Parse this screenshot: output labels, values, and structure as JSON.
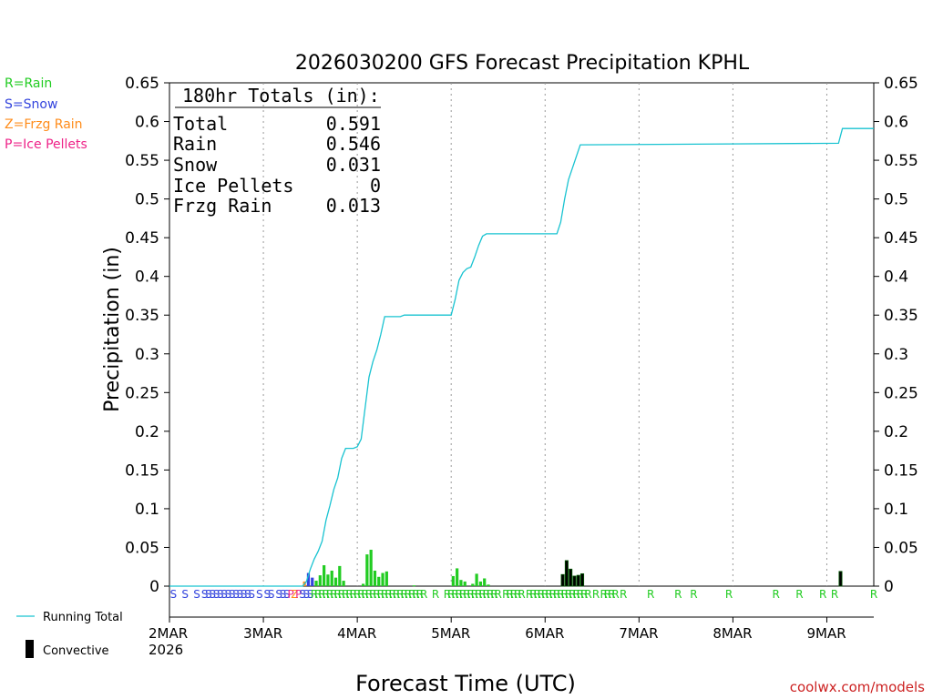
{
  "chart_data": {
    "type": "bar",
    "title": "2026030200 GFS Forecast Precipitation KPHL",
    "xlabel": "Forecast Time (UTC)",
    "ylabel": "Precipitation (in)",
    "ylim": [
      0,
      0.65
    ],
    "yticks": [
      0,
      0.05,
      0.1,
      0.15,
      0.2,
      0.25,
      0.3,
      0.35,
      0.4,
      0.45,
      0.5,
      0.55,
      0.6,
      0.65
    ],
    "ytick_labels": [
      "0",
      "0.05",
      "0.1",
      "0.15",
      "0.2",
      "0.25",
      "0.3",
      "0.35",
      "0.4",
      "0.45",
      "0.5",
      "0.55",
      "0.6",
      "0.65"
    ],
    "xlim_hours": [
      0,
      180
    ],
    "grid": "vertical dotted at day boundaries",
    "x_tick_labels": [
      {
        "hour": 0,
        "label": "2MAR"
      },
      {
        "hour": 24,
        "label": "3MAR"
      },
      {
        "hour": 48,
        "label": "4MAR"
      },
      {
        "hour": 72,
        "label": "5MAR"
      },
      {
        "hour": 96,
        "label": "6MAR"
      },
      {
        "hour": 120,
        "label": "7MAR"
      },
      {
        "hour": 144,
        "label": "8MAR"
      },
      {
        "hour": 168,
        "label": "9MAR"
      }
    ],
    "x_year_label": "2026",
    "legend_types": [
      {
        "label": "R=Rain",
        "color": "#22cc22"
      },
      {
        "label": "S=Snow",
        "color": "#3344dd"
      },
      {
        "label": "Z=Frzg Rain",
        "color": "#ff8c1a"
      },
      {
        "label": "P=Ice Pellets",
        "color": "#ee2288"
      }
    ],
    "legend_series": [
      {
        "label": "Running Total",
        "style": "line",
        "color": "#19c3d1"
      },
      {
        "label": "Convective",
        "style": "bar",
        "color": "#000000"
      }
    ],
    "totals_box": {
      "heading": "180hr Totals (in):",
      "rows": [
        {
          "label": "Total",
          "value": "0.591"
        },
        {
          "label": "Rain",
          "value": "0.546"
        },
        {
          "label": "Snow",
          "value": "0.031"
        },
        {
          "label": "Ice Pellets",
          "value": "0"
        },
        {
          "label": "Frzg Rain",
          "value": "0.013"
        }
      ]
    },
    "bars": [
      {
        "h": 34.5,
        "v": 0.006,
        "type": "Z"
      },
      {
        "h": 35.5,
        "v": 0.017,
        "type": "S"
      },
      {
        "h": 36.5,
        "v": 0.011,
        "type": "S"
      },
      {
        "h": 37.5,
        "v": 0.007,
        "type": "R"
      },
      {
        "h": 38.5,
        "v": 0.014,
        "type": "R"
      },
      {
        "h": 39.5,
        "v": 0.027,
        "type": "R"
      },
      {
        "h": 40.5,
        "v": 0.015,
        "type": "R"
      },
      {
        "h": 41.5,
        "v": 0.02,
        "type": "R"
      },
      {
        "h": 42.5,
        "v": 0.011,
        "type": "R"
      },
      {
        "h": 43.5,
        "v": 0.026,
        "type": "R"
      },
      {
        "h": 44.5,
        "v": 0.007,
        "type": "R"
      },
      {
        "h": 49.5,
        "v": 0.003,
        "type": "R"
      },
      {
        "h": 50.5,
        "v": 0.041,
        "type": "R"
      },
      {
        "h": 51.5,
        "v": 0.047,
        "type": "R"
      },
      {
        "h": 52.5,
        "v": 0.02,
        "type": "R"
      },
      {
        "h": 53.5,
        "v": 0.012,
        "type": "R"
      },
      {
        "h": 54.5,
        "v": 0.017,
        "type": "R"
      },
      {
        "h": 55.5,
        "v": 0.019,
        "type": "R"
      },
      {
        "h": 62.5,
        "v": 0.001,
        "type": "R"
      },
      {
        "h": 72.5,
        "v": 0.013,
        "type": "R"
      },
      {
        "h": 73.5,
        "v": 0.023,
        "type": "R"
      },
      {
        "h": 74.5,
        "v": 0.008,
        "type": "R"
      },
      {
        "h": 75.5,
        "v": 0.006,
        "type": "R"
      },
      {
        "h": 77.5,
        "v": 0.003,
        "type": "R"
      },
      {
        "h": 78.5,
        "v": 0.016,
        "type": "R"
      },
      {
        "h": 79.5,
        "v": 0.006,
        "type": "R"
      },
      {
        "h": 80.5,
        "v": 0.01,
        "type": "R"
      },
      {
        "h": 81.5,
        "v": 0.002,
        "type": "R"
      },
      {
        "h": 100.5,
        "v": 0.015,
        "type": "C"
      },
      {
        "h": 101.5,
        "v": 0.033,
        "type": "C"
      },
      {
        "h": 102.5,
        "v": 0.022,
        "type": "C"
      },
      {
        "h": 103.5,
        "v": 0.013,
        "type": "C"
      },
      {
        "h": 104.5,
        "v": 0.014,
        "type": "C"
      },
      {
        "h": 105.5,
        "v": 0.016,
        "type": "C"
      },
      {
        "h": 171.5,
        "v": 0.019,
        "type": "C"
      }
    ],
    "running_total": [
      [
        0,
        0
      ],
      [
        34,
        0
      ],
      [
        35,
        0.006
      ],
      [
        36,
        0.022
      ],
      [
        37,
        0.035
      ],
      [
        38,
        0.045
      ],
      [
        39,
        0.058
      ],
      [
        40,
        0.085
      ],
      [
        41,
        0.104
      ],
      [
        42,
        0.125
      ],
      [
        43,
        0.14
      ],
      [
        44,
        0.165
      ],
      [
        45,
        0.178
      ],
      [
        47,
        0.178
      ],
      [
        48,
        0.18
      ],
      [
        49,
        0.19
      ],
      [
        50,
        0.23
      ],
      [
        51,
        0.27
      ],
      [
        52,
        0.29
      ],
      [
        53,
        0.305
      ],
      [
        54,
        0.325
      ],
      [
        55,
        0.348
      ],
      [
        59,
        0.348
      ],
      [
        60,
        0.35
      ],
      [
        72,
        0.35
      ],
      [
        73,
        0.37
      ],
      [
        74,
        0.395
      ],
      [
        75,
        0.405
      ],
      [
        76,
        0.41
      ],
      [
        77,
        0.412
      ],
      [
        78,
        0.425
      ],
      [
        79,
        0.44
      ],
      [
        80,
        0.452
      ],
      [
        81,
        0.455
      ],
      [
        99,
        0.455
      ],
      [
        100,
        0.47
      ],
      [
        101,
        0.5
      ],
      [
        102,
        0.525
      ],
      [
        103,
        0.54
      ],
      [
        104,
        0.555
      ],
      [
        105,
        0.57
      ],
      [
        171,
        0.572
      ],
      [
        172,
        0.591
      ],
      [
        180,
        0.591
      ]
    ],
    "ptype_markers": [
      {
        "h": 1,
        "t": "S"
      },
      {
        "h": 4,
        "t": "S"
      },
      {
        "h": 7,
        "t": "S"
      },
      {
        "h": 9,
        "t": "S"
      },
      {
        "h": 10,
        "t": "S"
      },
      {
        "h": 11,
        "t": "S"
      },
      {
        "h": 12,
        "t": "S"
      },
      {
        "h": 13,
        "t": "S"
      },
      {
        "h": 14,
        "t": "S"
      },
      {
        "h": 15,
        "t": "S"
      },
      {
        "h": 16,
        "t": "S"
      },
      {
        "h": 17,
        "t": "S"
      },
      {
        "h": 18,
        "t": "S"
      },
      {
        "h": 19,
        "t": "S"
      },
      {
        "h": 20,
        "t": "S"
      },
      {
        "h": 21,
        "t": "S"
      },
      {
        "h": 23,
        "t": "S"
      },
      {
        "h": 25,
        "t": "S"
      },
      {
        "h": 26,
        "t": "S"
      },
      {
        "h": 28,
        "t": "S"
      },
      {
        "h": 29,
        "t": "S"
      },
      {
        "h": 30,
        "t": "S"
      },
      {
        "h": 31,
        "t": "P"
      },
      {
        "h": 32,
        "t": "Z"
      },
      {
        "h": 33,
        "t": "P"
      },
      {
        "h": 34,
        "t": "S"
      },
      {
        "h": 35,
        "t": "S"
      },
      {
        "h": 36,
        "t": "S"
      },
      {
        "h": 37,
        "t": "R"
      },
      {
        "h": 38,
        "t": "R"
      },
      {
        "h": 39,
        "t": "R"
      },
      {
        "h": 40,
        "t": "R"
      },
      {
        "h": 41,
        "t": "R"
      },
      {
        "h": 42,
        "t": "R"
      },
      {
        "h": 43,
        "t": "R"
      },
      {
        "h": 44,
        "t": "R"
      },
      {
        "h": 45,
        "t": "R"
      },
      {
        "h": 46,
        "t": "R"
      },
      {
        "h": 47,
        "t": "R"
      },
      {
        "h": 48,
        "t": "R"
      },
      {
        "h": 49,
        "t": "R"
      },
      {
        "h": 50,
        "t": "R"
      },
      {
        "h": 51,
        "t": "R"
      },
      {
        "h": 52,
        "t": "R"
      },
      {
        "h": 53,
        "t": "R"
      },
      {
        "h": 54,
        "t": "R"
      },
      {
        "h": 55,
        "t": "R"
      },
      {
        "h": 56,
        "t": "R"
      },
      {
        "h": 57,
        "t": "R"
      },
      {
        "h": 58,
        "t": "R"
      },
      {
        "h": 59,
        "t": "R"
      },
      {
        "h": 60,
        "t": "R"
      },
      {
        "h": 61,
        "t": "R"
      },
      {
        "h": 62,
        "t": "R"
      },
      {
        "h": 63,
        "t": "R"
      },
      {
        "h": 64,
        "t": "R"
      },
      {
        "h": 65,
        "t": "R"
      },
      {
        "h": 68,
        "t": "R"
      },
      {
        "h": 71,
        "t": "R"
      },
      {
        "h": 72,
        "t": "R"
      },
      {
        "h": 73,
        "t": "R"
      },
      {
        "h": 74,
        "t": "R"
      },
      {
        "h": 75,
        "t": "R"
      },
      {
        "h": 76,
        "t": "R"
      },
      {
        "h": 77,
        "t": "R"
      },
      {
        "h": 78,
        "t": "R"
      },
      {
        "h": 79,
        "t": "R"
      },
      {
        "h": 80,
        "t": "R"
      },
      {
        "h": 81,
        "t": "R"
      },
      {
        "h": 82,
        "t": "R"
      },
      {
        "h": 83,
        "t": "R"
      },
      {
        "h": 84,
        "t": "R"
      },
      {
        "h": 86,
        "t": "R"
      },
      {
        "h": 87,
        "t": "R"
      },
      {
        "h": 88,
        "t": "R"
      },
      {
        "h": 89,
        "t": "R"
      },
      {
        "h": 90,
        "t": "R"
      },
      {
        "h": 92,
        "t": "R"
      },
      {
        "h": 93,
        "t": "R"
      },
      {
        "h": 94,
        "t": "R"
      },
      {
        "h": 95,
        "t": "R"
      },
      {
        "h": 96,
        "t": "R"
      },
      {
        "h": 97,
        "t": "R"
      },
      {
        "h": 98,
        "t": "R"
      },
      {
        "h": 99,
        "t": "R"
      },
      {
        "h": 100,
        "t": "R"
      },
      {
        "h": 101,
        "t": "R"
      },
      {
        "h": 102,
        "t": "R"
      },
      {
        "h": 103,
        "t": "R"
      },
      {
        "h": 104,
        "t": "R"
      },
      {
        "h": 105,
        "t": "R"
      },
      {
        "h": 106,
        "t": "R"
      },
      {
        "h": 107,
        "t": "R"
      },
      {
        "h": 109,
        "t": "R"
      },
      {
        "h": 111,
        "t": "R"
      },
      {
        "h": 112,
        "t": "R"
      },
      {
        "h": 113,
        "t": "R"
      },
      {
        "h": 114,
        "t": "R"
      },
      {
        "h": 116,
        "t": "R"
      },
      {
        "h": 123,
        "t": "R"
      },
      {
        "h": 130,
        "t": "R"
      },
      {
        "h": 134,
        "t": "R"
      },
      {
        "h": 143,
        "t": "R"
      },
      {
        "h": 155,
        "t": "R"
      },
      {
        "h": 161,
        "t": "R"
      },
      {
        "h": 167,
        "t": "R"
      },
      {
        "h": 170,
        "t": "R"
      },
      {
        "h": 180,
        "t": "R"
      }
    ],
    "credit": "coolwx.com/models"
  },
  "colors": {
    "rain": "#22cc22",
    "snow": "#3344dd",
    "frzg_rain": "#ff8c1a",
    "ice_pellets": "#ee2288",
    "convective": "#000000",
    "running_total": "#19c3d1",
    "credit": "#cc2222"
  }
}
